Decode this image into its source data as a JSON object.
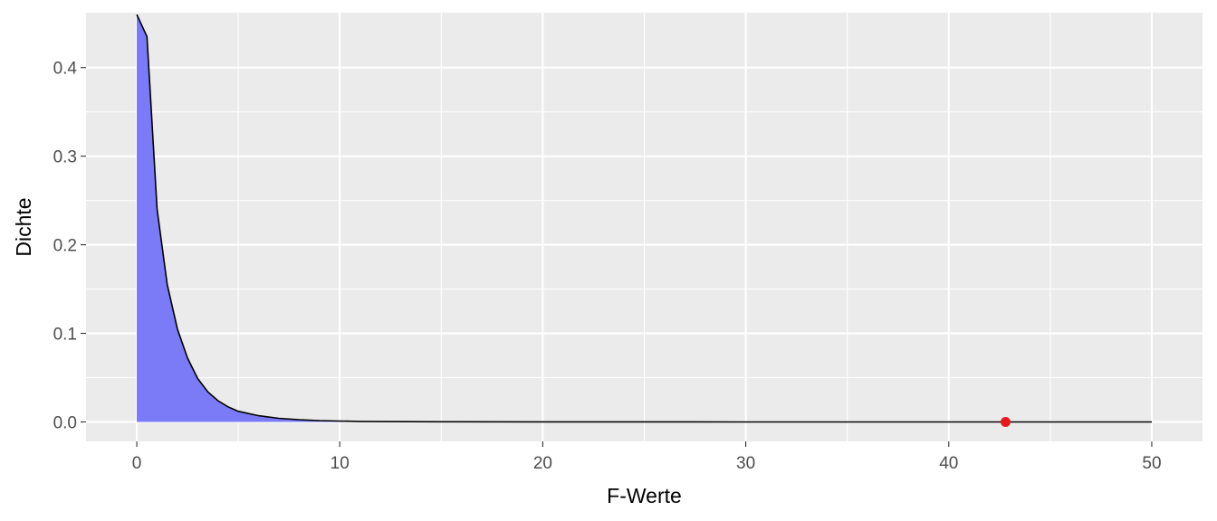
{
  "chart_data": {
    "type": "area",
    "title": "",
    "xlabel": "F-Werte",
    "ylabel": "Dichte",
    "xlim": [
      -2.5,
      52.5
    ],
    "ylim": [
      -0.022,
      0.462
    ],
    "x_ticks": [
      0,
      10,
      20,
      30,
      40,
      50
    ],
    "x_tick_labels": [
      "0",
      "10",
      "20",
      "30",
      "40",
      "50"
    ],
    "y_ticks": [
      0.0,
      0.1,
      0.2,
      0.3,
      0.4
    ],
    "y_tick_labels": [
      "0.0",
      "0.1",
      "0.2",
      "0.3",
      "0.4"
    ],
    "grid": true,
    "shaded_region": {
      "x_from": 0,
      "x_to": 12,
      "color": "#7b7bf7"
    },
    "series": [
      {
        "x": [
          0,
          0.5,
          1,
          1.5,
          2,
          2.5,
          3,
          3.5,
          4,
          4.5,
          5,
          6,
          7,
          8,
          9,
          10,
          11,
          12,
          15,
          20,
          30,
          40,
          50
        ],
        "y": [
          0.46,
          0.435,
          0.24,
          0.155,
          0.105,
          0.072,
          0.049,
          0.034,
          0.024,
          0.017,
          0.012,
          0.007,
          0.004,
          0.0025,
          0.0015,
          0.001,
          0.0006,
          0.0004,
          0.0002,
          0.0001,
          0.0,
          0.0,
          0.0
        ],
        "line_color": "#000000"
      }
    ],
    "marker": {
      "x": 42.8,
      "y": 0.0,
      "color": "#e41a1c"
    },
    "panel_background": "#ebebeb",
    "grid_color": "#ffffff"
  }
}
